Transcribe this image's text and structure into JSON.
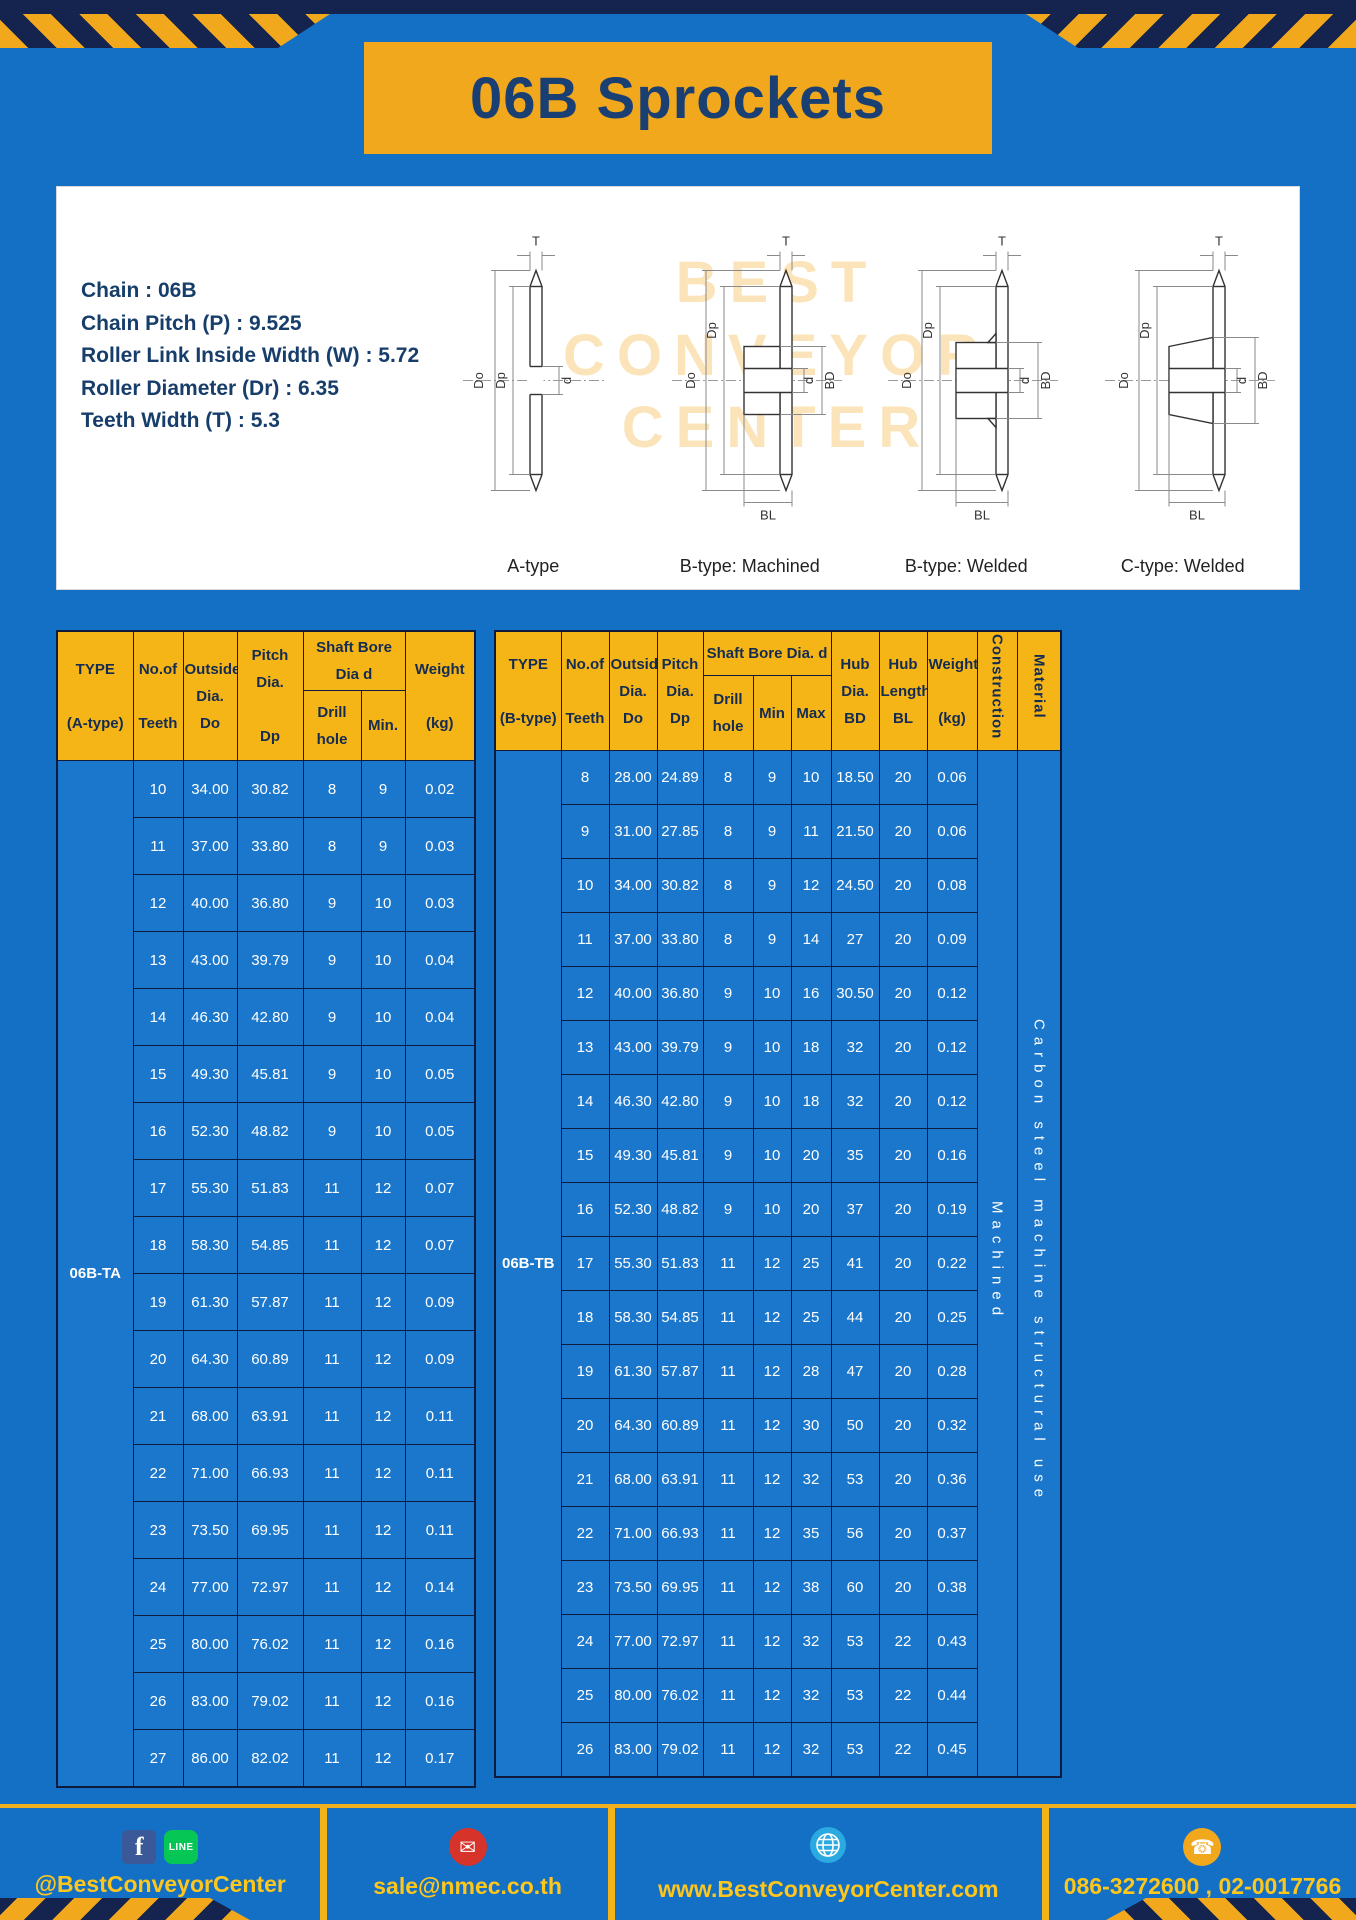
{
  "title": "06B Sprockets",
  "specs": [
    "Chain : 06B",
    "Chain Pitch (P) : 9.525",
    "Roller Link Inside Width (W) : 5.72",
    "Roller Diameter (Dr) : 6.35",
    "Teeth Width (T) : 5.3"
  ],
  "drawings": {
    "watermark": [
      "BEST",
      "CONVEYOR",
      "CENTER"
    ],
    "items": [
      {
        "label": "A-type",
        "dims": {
          "t": "T",
          "do": "Do",
          "dp": "Dp",
          "d": "d"
        }
      },
      {
        "label": "B-type: Machined",
        "dims": {
          "t": "T",
          "do": "Do",
          "dp": "Dp",
          "d": "d",
          "bd": "BD",
          "bl": "BL"
        }
      },
      {
        "label": "B-type: Welded",
        "dims": {
          "t": "T",
          "do": "Do",
          "dp": "Dp",
          "d": "d",
          "bd": "BD",
          "bl": "BL"
        }
      },
      {
        "label": "C-type: Welded",
        "dims": {
          "t": "T",
          "do": "Do",
          "dp": "Dp",
          "d": "d",
          "bd": "BD",
          "bl": "BL"
        }
      }
    ]
  },
  "table_a": {
    "headers": {
      "type": "TYPE\n\n(A-type)",
      "teeth": "No.of\n\nTeeth",
      "outside": "Outside\nDia.\nDo",
      "pitch": "Pitch Dia.\n\nDp",
      "bore_group": "Shaft Bore Dia d",
      "drill": "Drill hole",
      "min": "Min.",
      "weight": "Weight\n\n(kg)"
    },
    "type_value": "06B-TA",
    "rows": [
      [
        "10",
        "34.00",
        "30.82",
        "8",
        "9",
        "0.02"
      ],
      [
        "11",
        "37.00",
        "33.80",
        "8",
        "9",
        "0.03"
      ],
      [
        "12",
        "40.00",
        "36.80",
        "9",
        "10",
        "0.03"
      ],
      [
        "13",
        "43.00",
        "39.79",
        "9",
        "10",
        "0.04"
      ],
      [
        "14",
        "46.30",
        "42.80",
        "9",
        "10",
        "0.04"
      ],
      [
        "15",
        "49.30",
        "45.81",
        "9",
        "10",
        "0.05"
      ],
      [
        "16",
        "52.30",
        "48.82",
        "9",
        "10",
        "0.05"
      ],
      [
        "17",
        "55.30",
        "51.83",
        "11",
        "12",
        "0.07"
      ],
      [
        "18",
        "58.30",
        "54.85",
        "11",
        "12",
        "0.07"
      ],
      [
        "19",
        "61.30",
        "57.87",
        "11",
        "12",
        "0.09"
      ],
      [
        "20",
        "64.30",
        "60.89",
        "11",
        "12",
        "0.09"
      ],
      [
        "21",
        "68.00",
        "63.91",
        "11",
        "12",
        "0.11"
      ],
      [
        "22",
        "71.00",
        "66.93",
        "11",
        "12",
        "0.11"
      ],
      [
        "23",
        "73.50",
        "69.95",
        "11",
        "12",
        "0.11"
      ],
      [
        "24",
        "77.00",
        "72.97",
        "11",
        "12",
        "0.14"
      ],
      [
        "25",
        "80.00",
        "76.02",
        "11",
        "12",
        "0.16"
      ],
      [
        "26",
        "83.00",
        "79.02",
        "11",
        "12",
        "0.16"
      ],
      [
        "27",
        "86.00",
        "82.02",
        "11",
        "12",
        "0.17"
      ]
    ]
  },
  "table_b": {
    "headers": {
      "type": "TYPE\n\n(B-type)",
      "teeth": "No.of\n\nTeeth",
      "outside": "Outside\nDia.\nDo",
      "pitch": "Pitch\nDia.\nDp",
      "bore_group": "Shaft Bore Dia. d",
      "drill": "Drill hole",
      "min": "Min",
      "max": "Max",
      "hub_dia": "Hub\nDia.\nBD",
      "hub_len": "Hub\nLength\nBL",
      "weight": "Weight\n\n(kg)",
      "construction": "Construction",
      "material": "Material"
    },
    "type_value": "06B-TB",
    "construction_value": "Machined",
    "material_value": "Carbon steel machine structural use",
    "rows": [
      [
        "8",
        "28.00",
        "24.89",
        "8",
        "9",
        "10",
        "18.50",
        "20",
        "0.06"
      ],
      [
        "9",
        "31.00",
        "27.85",
        "8",
        "9",
        "11",
        "21.50",
        "20",
        "0.06"
      ],
      [
        "10",
        "34.00",
        "30.82",
        "8",
        "9",
        "12",
        "24.50",
        "20",
        "0.08"
      ],
      [
        "11",
        "37.00",
        "33.80",
        "8",
        "9",
        "14",
        "27",
        "20",
        "0.09"
      ],
      [
        "12",
        "40.00",
        "36.80",
        "9",
        "10",
        "16",
        "30.50",
        "20",
        "0.12"
      ],
      [
        "13",
        "43.00",
        "39.79",
        "9",
        "10",
        "18",
        "32",
        "20",
        "0.12"
      ],
      [
        "14",
        "46.30",
        "42.80",
        "9",
        "10",
        "18",
        "32",
        "20",
        "0.12"
      ],
      [
        "15",
        "49.30",
        "45.81",
        "9",
        "10",
        "20",
        "35",
        "20",
        "0.16"
      ],
      [
        "16",
        "52.30",
        "48.82",
        "9",
        "10",
        "20",
        "37",
        "20",
        "0.19"
      ],
      [
        "17",
        "55.30",
        "51.83",
        "11",
        "12",
        "25",
        "41",
        "20",
        "0.22"
      ],
      [
        "18",
        "58.30",
        "54.85",
        "11",
        "12",
        "25",
        "44",
        "20",
        "0.25"
      ],
      [
        "19",
        "61.30",
        "57.87",
        "11",
        "12",
        "28",
        "47",
        "20",
        "0.28"
      ],
      [
        "20",
        "64.30",
        "60.89",
        "11",
        "12",
        "30",
        "50",
        "20",
        "0.32"
      ],
      [
        "21",
        "68.00",
        "63.91",
        "11",
        "12",
        "32",
        "53",
        "20",
        "0.36"
      ],
      [
        "22",
        "71.00",
        "66.93",
        "11",
        "12",
        "35",
        "56",
        "20",
        "0.37"
      ],
      [
        "23",
        "73.50",
        "69.95",
        "11",
        "12",
        "38",
        "60",
        "20",
        "0.38"
      ],
      [
        "24",
        "77.00",
        "72.97",
        "11",
        "12",
        "32",
        "53",
        "22",
        "0.43"
      ],
      [
        "25",
        "80.00",
        "76.02",
        "11",
        "12",
        "32",
        "53",
        "22",
        "0.44"
      ],
      [
        "26",
        "83.00",
        "79.02",
        "11",
        "12",
        "32",
        "53",
        "22",
        "0.45"
      ]
    ]
  },
  "footer": {
    "facebook": "f",
    "line": "LINE",
    "social_label": "@BestConveyorCenter",
    "email": "sale@nmec.co.th",
    "website": "www.BestConveyorCenter.com",
    "phone": "086-3272600 , 02-0017766",
    "mail_glyph": "✉",
    "phone_glyph": "☎"
  },
  "colors": {
    "page_blue": "#1470C4",
    "cell_blue": "#1B77CB",
    "banner_yellow": "#F2A81C",
    "header_yellow": "#F5B517",
    "navy": "#14244E",
    "border_navy": "#0E1B3D",
    "footer_text_yellow": "#FFC61C"
  }
}
